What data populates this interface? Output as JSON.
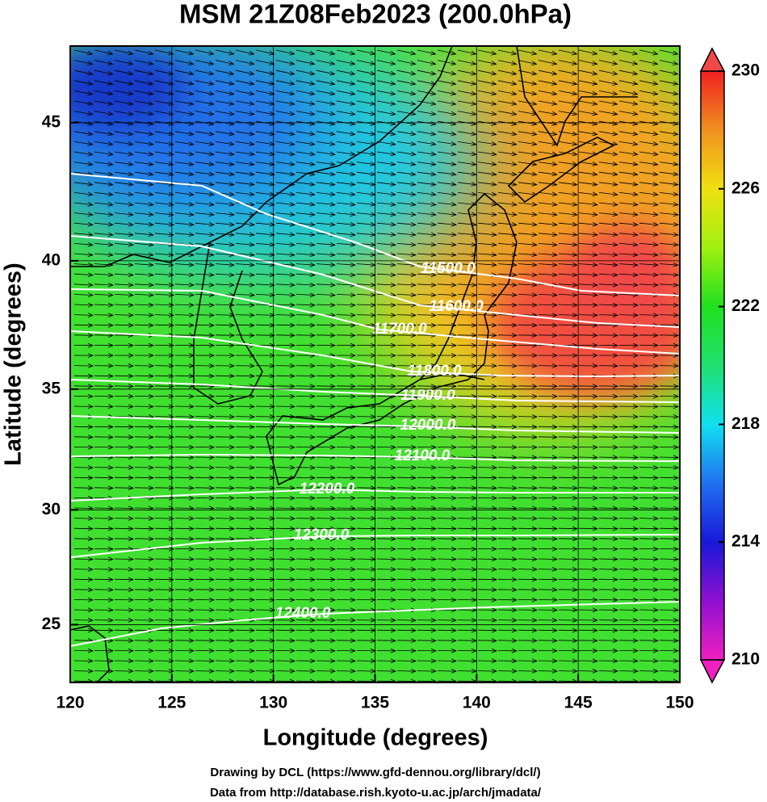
{
  "chart_data": {
    "type": "map",
    "projection": "mercator",
    "title": "MSM 21Z08Feb2023 (200.0hPa)",
    "x_label": "Longitude (degrees)",
    "y_label": "Latitude  (degrees)",
    "xlim": [
      120,
      150
    ],
    "ylim": [
      22.4,
      47.6
    ],
    "xticks": [
      120,
      125,
      130,
      135,
      140,
      145,
      150
    ],
    "yticks": [
      25,
      30,
      35,
      40,
      45
    ],
    "grid": true,
    "colorbar": {
      "lim": [
        210,
        230
      ],
      "ticks": [
        210,
        214,
        218,
        222,
        226,
        230
      ]
    },
    "contours": [
      {
        "value": 11500,
        "label": "11500.0"
      },
      {
        "value": 11600,
        "label": "11600.0"
      },
      {
        "value": 11700,
        "label": "11700.0"
      },
      {
        "value": 11800,
        "label": "11800.0"
      },
      {
        "value": 11900,
        "label": "11900.0"
      },
      {
        "value": 12000,
        "label": "12000.0"
      },
      {
        "value": 12100,
        "label": "12100.0"
      },
      {
        "value": 12200,
        "label": "12200.0"
      },
      {
        "value": 12300,
        "label": "12300.0"
      },
      {
        "value": 12400,
        "label": "12400.0"
      }
    ]
  },
  "footer": [
    "Drawing by DCL (https://www.gfd-dennou.org/library/dcl/)",
    "Data from http://database.rish.kyoto-u.ac.jp/arch/jmadata/"
  ]
}
